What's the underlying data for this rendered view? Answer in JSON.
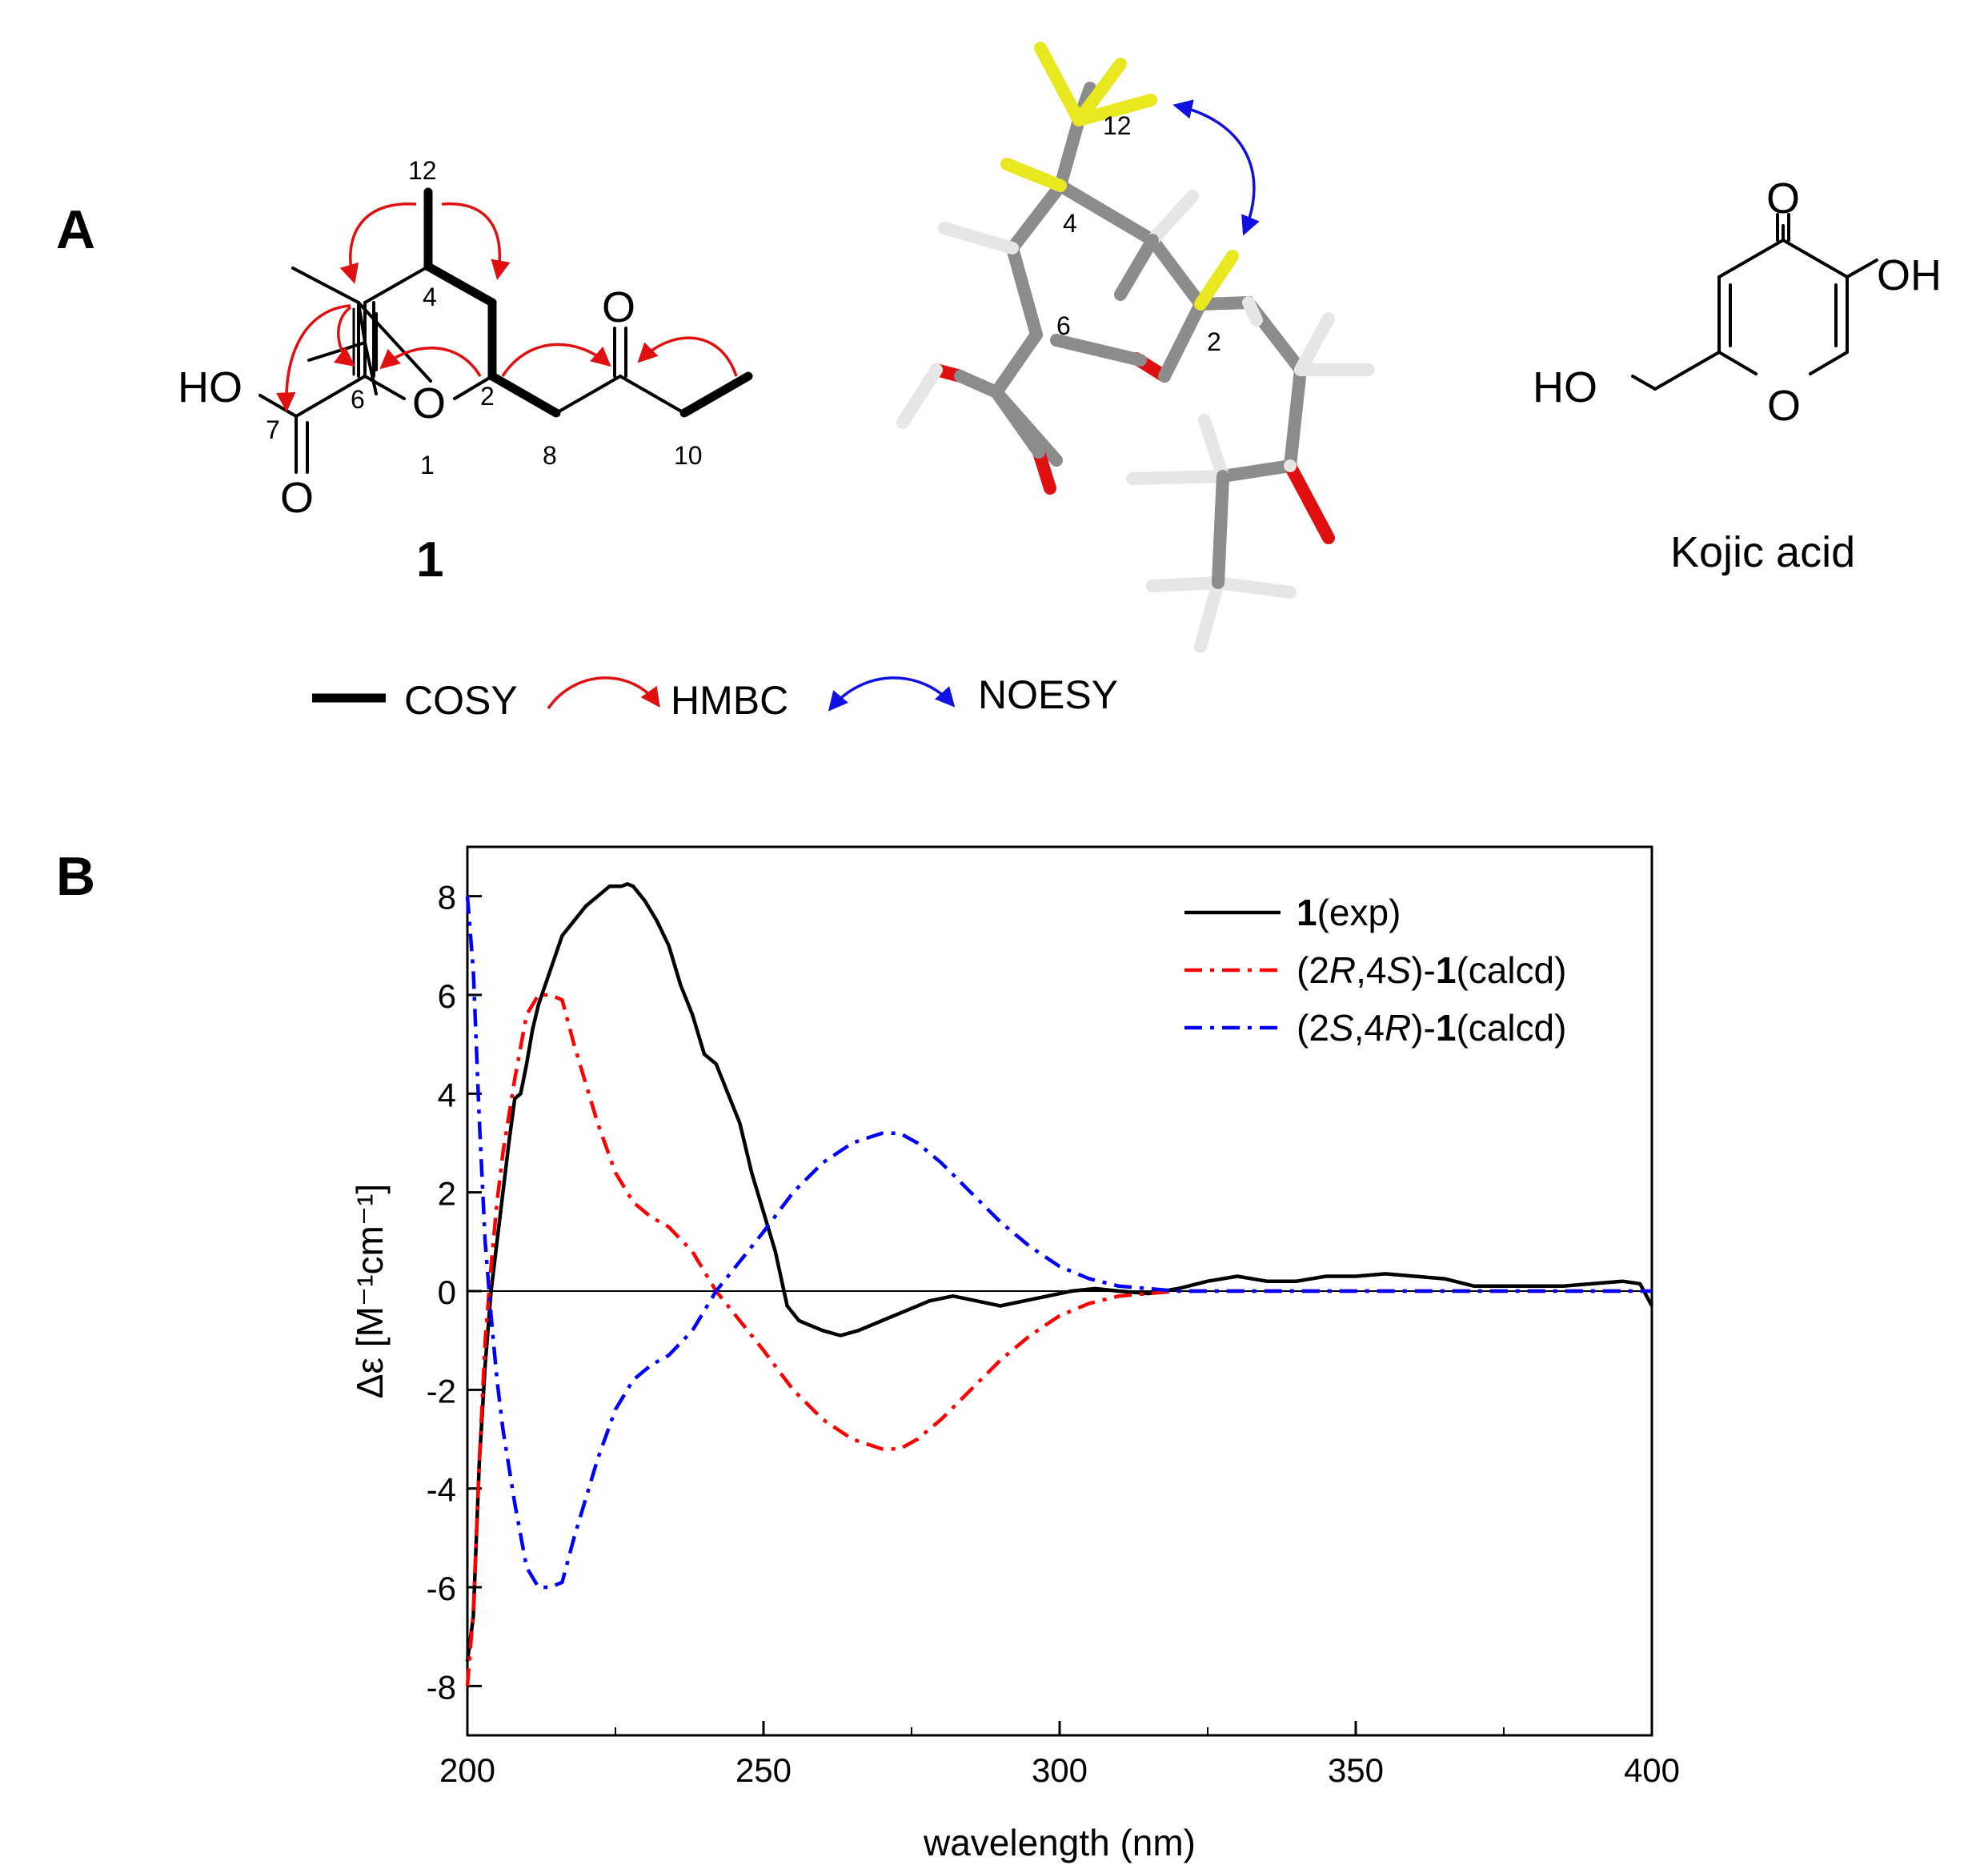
{
  "panels": {
    "a": "A",
    "b": "B"
  },
  "structure1": {
    "atoms": {
      "ho": "HO",
      "o7": "O",
      "o1": "O",
      "o9": "O"
    },
    "numbers": {
      "n12": "12",
      "n4": "4",
      "n6": "6",
      "n2": "2",
      "n7": "7",
      "n1": "1",
      "n8": "8",
      "n10": "10"
    },
    "compound_label": "1"
  },
  "model3d": {
    "numbers": {
      "n12": "12",
      "n4": "4",
      "n6": "6",
      "n2": "2"
    },
    "colors": {
      "carbon": "#8c8c8c",
      "hydrogen": "#e6e6e6",
      "oxygen": "#e01010",
      "highlight_h": "#e8e820",
      "noesy": "#1010e0"
    }
  },
  "kojic": {
    "atoms": {
      "o_top": "O",
      "oh": "OH",
      "ho": "HO",
      "o_ring": "O"
    },
    "name": "Kojic acid"
  },
  "legend_top": {
    "cosy": "COSY",
    "hmbc": "HMBC",
    "noesy": "NOESY"
  },
  "chart_data": {
    "type": "line",
    "xlabel": "wavelength (nm)",
    "ylabel": "Δε [M⁻¹cm⁻¹]",
    "xlim": [
      200,
      400
    ],
    "ylim": [
      -9,
      9
    ],
    "xticks": [
      200,
      250,
      300,
      350,
      400
    ],
    "yticks": [
      -8,
      -6,
      -4,
      -2,
      0,
      2,
      4,
      6,
      8
    ],
    "zero_line": true,
    "legend_placement": "top-right",
    "series": [
      {
        "name_parts": [
          {
            "text": "1",
            "style": "bold"
          },
          {
            "text": "(exp)",
            "style": "normal"
          }
        ],
        "color": "#000000",
        "dash": "solid",
        "x": [
          200,
          201,
          202,
          203,
          204,
          205,
          206,
          207,
          208,
          209,
          210,
          211,
          212,
          214,
          216,
          218,
          220,
          222,
          224,
          226,
          227,
          228,
          230,
          232,
          234,
          236,
          238,
          240,
          242,
          244,
          246,
          248,
          250,
          252,
          254,
          256,
          258,
          260,
          263,
          266,
          270,
          274,
          278,
          282,
          286,
          290,
          294,
          298,
          302,
          306,
          310,
          315,
          320,
          325,
          330,
          335,
          340,
          345,
          350,
          355,
          360,
          365,
          370,
          375,
          380,
          385,
          390,
          395,
          398,
          400
        ],
        "y": [
          -7.5,
          -6.6,
          -3.5,
          -1.5,
          0.0,
          1.0,
          2.0,
          3.0,
          3.9,
          4.0,
          4.6,
          5.3,
          5.8,
          6.5,
          7.2,
          7.5,
          7.8,
          8.0,
          8.2,
          8.2,
          8.25,
          8.2,
          7.9,
          7.5,
          7.0,
          6.2,
          5.6,
          4.8,
          4.6,
          4.0,
          3.4,
          2.4,
          1.6,
          0.8,
          -0.3,
          -0.6,
          -0.7,
          -0.8,
          -0.9,
          -0.8,
          -0.6,
          -0.4,
          -0.2,
          -0.1,
          -0.2,
          -0.3,
          -0.2,
          -0.1,
          0.0,
          0.05,
          0.0,
          -0.05,
          0.05,
          0.2,
          0.3,
          0.2,
          0.2,
          0.3,
          0.3,
          0.35,
          0.3,
          0.25,
          0.1,
          0.1,
          0.1,
          0.1,
          0.15,
          0.2,
          0.15,
          -0.3
        ]
      },
      {
        "name_parts": [
          {
            "text": "(2",
            "style": "normal"
          },
          {
            "text": "R",
            "style": "italic"
          },
          {
            "text": ",4",
            "style": "normal"
          },
          {
            "text": "S",
            "style": "italic"
          },
          {
            "text": ")-",
            "style": "normal"
          },
          {
            "text": "1",
            "style": "bold"
          },
          {
            "text": "(calcd)",
            "style": "normal"
          }
        ],
        "color": "#ff0000",
        "dash": "dashdot",
        "x": [
          200,
          201,
          202,
          203,
          204,
          205,
          206,
          208,
          210,
          212,
          214,
          216,
          218,
          220,
          222,
          225,
          228,
          231,
          234,
          238,
          242,
          246,
          250,
          255,
          260,
          265,
          270,
          273,
          276,
          280,
          285,
          290,
          295,
          300,
          305,
          310,
          315,
          320,
          330,
          340,
          360,
          380,
          400
        ],
        "y": [
          -8.0,
          -6.5,
          -3.5,
          -1.0,
          0.5,
          1.8,
          2.8,
          4.3,
          5.6,
          6.0,
          6.0,
          5.9,
          5.0,
          4.2,
          3.4,
          2.4,
          1.8,
          1.5,
          1.3,
          0.8,
          0.0,
          -0.6,
          -1.2,
          -2.0,
          -2.6,
          -3.0,
          -3.2,
          -3.2,
          -3.0,
          -2.6,
          -2.0,
          -1.4,
          -0.9,
          -0.5,
          -0.25,
          -0.1,
          -0.05,
          0.0,
          0.0,
          0.0,
          0.0,
          0.0,
          0.0
        ]
      },
      {
        "name_parts": [
          {
            "text": "(2",
            "style": "normal"
          },
          {
            "text": "S",
            "style": "italic"
          },
          {
            "text": ",4",
            "style": "normal"
          },
          {
            "text": "R",
            "style": "italic"
          },
          {
            "text": ")-",
            "style": "normal"
          },
          {
            "text": "1",
            "style": "bold"
          },
          {
            "text": "(calcd)",
            "style": "normal"
          }
        ],
        "color": "#0000ff",
        "dash": "dashdot",
        "x": [
          200,
          201,
          202,
          203,
          204,
          205,
          206,
          208,
          210,
          212,
          214,
          216,
          218,
          220,
          222,
          225,
          228,
          231,
          234,
          238,
          242,
          246,
          250,
          255,
          260,
          265,
          270,
          273,
          276,
          280,
          285,
          290,
          295,
          300,
          305,
          310,
          315,
          320,
          330,
          340,
          360,
          380,
          400
        ],
        "y": [
          8.0,
          6.5,
          3.5,
          1.0,
          -0.5,
          -1.8,
          -2.8,
          -4.3,
          -5.6,
          -6.0,
          -6.0,
          -5.9,
          -5.0,
          -4.2,
          -3.4,
          -2.4,
          -1.8,
          -1.5,
          -1.3,
          -0.8,
          0.0,
          0.6,
          1.2,
          2.0,
          2.6,
          3.0,
          3.2,
          3.2,
          3.0,
          2.6,
          2.0,
          1.4,
          0.9,
          0.5,
          0.25,
          0.1,
          0.05,
          0.0,
          0.0,
          0.0,
          0.0,
          0.0,
          0.0
        ]
      }
    ]
  }
}
